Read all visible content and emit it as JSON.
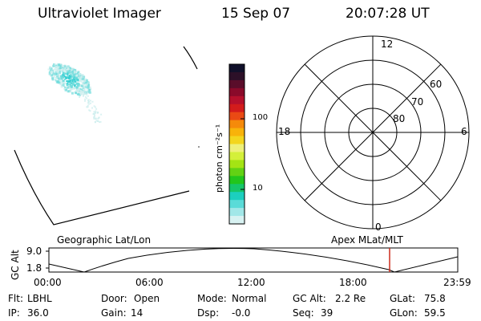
{
  "header": {
    "title": "Ultraviolet Imager",
    "date": "15 Sep 07",
    "time": "20:07:28 UT"
  },
  "colorbar": {
    "unit_label": "photon cm⁻²s⁻¹",
    "ticks": [
      "100",
      "10"
    ],
    "colors": [
      "#10102a",
      "#2c1028",
      "#5a0d2a",
      "#8a0a2a",
      "#b5102c",
      "#d31c1c",
      "#ea4a14",
      "#f58a0a",
      "#f8b30a",
      "#f3d61e",
      "#eef07a",
      "#d4f03a",
      "#a4e414",
      "#62d214",
      "#22c61c",
      "#16c66a",
      "#1ccfbf",
      "#5adbd8",
      "#a2e7e8",
      "#d8f2f2"
    ]
  },
  "polar_plot": {
    "hour_labels": {
      "top": "12",
      "left": "18",
      "right": "6",
      "bottom": "0"
    },
    "lat_labels": [
      "60",
      "70",
      "80"
    ]
  },
  "altitude_plot": {
    "title_left": "Geographic Lat/Lon",
    "title_right": "Apex MLat/MLT",
    "y_axis_label": "GC Alt",
    "y_ticks": [
      "9.0",
      "1.8"
    ],
    "x_ticks": [
      "00:00",
      "06:00",
      "12:00",
      "18:00",
      "23:59"
    ],
    "current_marker_color": "#cc2a1a"
  },
  "status": {
    "row1": [
      {
        "label": "Flt:",
        "value": "LBHL"
      },
      {
        "label": "Door:",
        "value": "Open"
      },
      {
        "label": "Mode:",
        "value": "Normal"
      },
      {
        "label": "GC Alt:",
        "value": "2.2 Re"
      },
      {
        "label": "GLat:",
        "value": "75.8"
      }
    ],
    "row2": [
      {
        "label": "IP:",
        "value": "36.0"
      },
      {
        "label": "Gain:",
        "value": "14"
      },
      {
        "label": "Dsp:",
        "value": "-0.0"
      },
      {
        "label": "Seq:",
        "value": "39"
      },
      {
        "label": "GLon:",
        "value": "59.5"
      }
    ]
  },
  "colors": {
    "aurora_light": "#cdeeee",
    "aurora_mid": "#6fdcdc",
    "aurora_bright": "#34cfd2"
  }
}
